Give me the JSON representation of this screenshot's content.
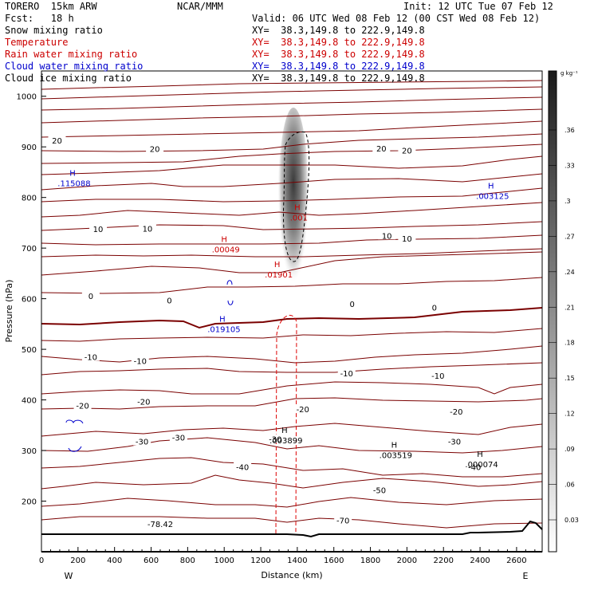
{
  "header": {
    "model": "TORERO  15km ARW",
    "center": "NCAR/MMM",
    "init": "Init: 12 UTC Tue 07 Feb 12",
    "fcst": "Fcst:   18 h",
    "valid": "Valid: 06 UTC Wed 08 Feb 12 (00 CST Wed 08 Feb 12)"
  },
  "fields": [
    {
      "name": "Snow mixing ratio",
      "xy": "XY=  38.3,149.8 to 222.9,149.8",
      "color": "#000000"
    },
    {
      "name": "Temperature",
      "xy": "XY=  38.3,149.8 to 222.9,149.8",
      "color": "#cc0000"
    },
    {
      "name": "Rain water mixing ratio",
      "xy": "XY=  38.3,149.8 to 222.9,149.8",
      "color": "#cc0000"
    },
    {
      "name": "Cloud water mixing ratio",
      "xy": "XY=  38.3,149.8 to 222.9,149.8",
      "color": "#0000cc"
    },
    {
      "name": "Cloud ice mixing ratio",
      "xy": "XY=  38.3,149.8 to 222.9,149.8",
      "color": "#000000"
    }
  ],
  "chart_data": {
    "type": "cross-section",
    "xlabel": "Distance (km)",
    "ylabel": "Pressure (hPa)",
    "xlim": [
      0,
      2740
    ],
    "ylim": [
      1050,
      100
    ],
    "x_ticks": [
      0,
      200,
      400,
      600,
      800,
      1000,
      1200,
      1400,
      1600,
      1800,
      2000,
      2200,
      2400,
      2600
    ],
    "y_ticks": [
      200,
      300,
      400,
      500,
      600,
      700,
      800,
      900,
      1000
    ],
    "west_label": "W",
    "east_label": "E",
    "colorbar": {
      "unit": "g kg⁻¹",
      "ticks": [
        "0.03",
        ".06",
        ".09",
        ".12",
        ".15",
        ".18",
        ".21",
        ".24",
        ".27",
        ".3",
        ".33",
        ".36"
      ]
    },
    "temperature_contours": [
      {
        "label": "-78.42",
        "value": -78.42,
        "x": 650,
        "p": 155
      },
      {
        "label": "-70",
        "value": -70,
        "x": 1650,
        "p": 162
      },
      {
        "label": "-50",
        "value": -50,
        "x": 1850,
        "p": 222
      },
      {
        "label": "-40",
        "value": -40,
        "x": 1100,
        "p": 268
      },
      {
        "label": "-40",
        "value": -40,
        "x": 2370,
        "p": 268
      },
      {
        "label": "-30",
        "value": -30,
        "x": 550,
        "p": 318
      },
      {
        "label": "-30",
        "value": -30,
        "x": 750,
        "p": 326
      },
      {
        "label": "-30",
        "value": -30,
        "x": 1280,
        "p": 323
      },
      {
        "label": "-30",
        "value": -30,
        "x": 2260,
        "p": 318
      },
      {
        "label": "-20",
        "value": -20,
        "x": 225,
        "p": 389
      },
      {
        "label": "-20",
        "value": -20,
        "x": 560,
        "p": 397
      },
      {
        "label": "-20",
        "value": -20,
        "x": 1430,
        "p": 382
      },
      {
        "label": "-20",
        "value": -20,
        "x": 2270,
        "p": 377
      },
      {
        "label": "-10",
        "value": -10,
        "x": 270,
        "p": 485
      },
      {
        "label": "-10",
        "value": -10,
        "x": 540,
        "p": 477
      },
      {
        "label": "-10",
        "value": -10,
        "x": 1670,
        "p": 453
      },
      {
        "label": "-10",
        "value": -10,
        "x": 2170,
        "p": 448
      },
      {
        "label": "0",
        "value": 0,
        "x": 270,
        "p": 606
      },
      {
        "label": "0",
        "value": 0,
        "x": 700,
        "p": 597
      },
      {
        "label": "0",
        "value": 0,
        "x": 1700,
        "p": 590
      },
      {
        "label": "0",
        "value": 0,
        "x": 2150,
        "p": 583
      },
      {
        "label": "10",
        "value": 10,
        "x": 310,
        "p": 738
      },
      {
        "label": "10",
        "value": 10,
        "x": 580,
        "p": 739
      },
      {
        "label": "10",
        "value": 10,
        "x": 1890,
        "p": 725
      },
      {
        "label": "10",
        "value": 10,
        "x": 2000,
        "p": 719
      },
      {
        "label": "20",
        "value": 20,
        "x": 85,
        "p": 913
      },
      {
        "label": "20",
        "value": 20,
        "x": 620,
        "p": 896
      },
      {
        "label": "20",
        "value": 20,
        "x": 1860,
        "p": 897
      },
      {
        "label": "20",
        "value": 20,
        "x": 2000,
        "p": 893
      }
    ],
    "maxima": [
      {
        "label": "H",
        "value": ".003899",
        "x": 1330,
        "p": 330,
        "color": "#000000"
      },
      {
        "label": "H",
        "value": ".003519",
        "x": 1930,
        "p": 301,
        "color": "#000000"
      },
      {
        "label": "H",
        "value": ".000074",
        "x": 2400,
        "p": 283,
        "color": "#000000"
      },
      {
        "label": "H",
        "value": ".019105",
        "x": 990,
        "p": 550,
        "color": "#0000cc"
      },
      {
        "label": "H",
        "value": ".01901",
        "x": 1290,
        "p": 658,
        "color": "#cc0000"
      },
      {
        "label": "H",
        "value": ".00049",
        "x": 1000,
        "p": 707,
        "color": "#cc0000"
      },
      {
        "label": "H",
        "value": ".001",
        "x": 1400,
        "p": 770,
        "color": "#cc0000"
      },
      {
        "label": "H",
        "value": ".115088",
        "x": 170,
        "p": 838,
        "color": "#0000cc"
      },
      {
        "label": "H",
        "value": ".003125",
        "x": 2460,
        "p": 813,
        "color": "#0000cc"
      }
    ]
  }
}
